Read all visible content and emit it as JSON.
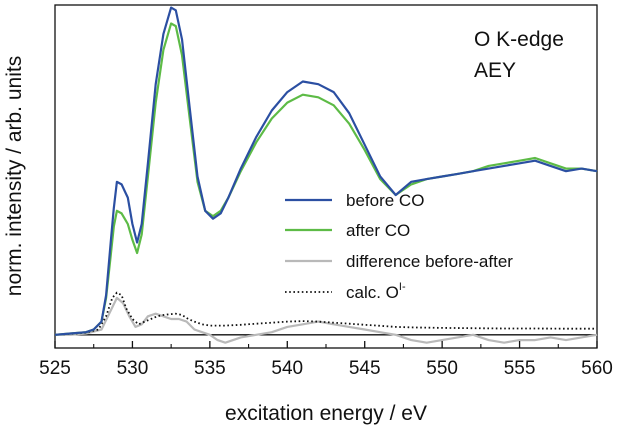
{
  "chart_data": {
    "type": "line",
    "title": "",
    "xlabel": "excitation energy / eV",
    "ylabel": "norm. intensity / arb. units",
    "xlim": [
      525,
      560
    ],
    "ylim": [
      -0.05,
      1.25
    ],
    "xticks": [
      525,
      530,
      535,
      540,
      545,
      550,
      555,
      560
    ],
    "annotation_lines": [
      "O K-edge",
      "AEY"
    ],
    "legend_position": "center-right",
    "baseline_y": 0.0,
    "series": [
      {
        "name": "before CO",
        "color": "#2b4fa2",
        "style": "solid",
        "x": [
          525,
          526,
          527,
          527.5,
          528,
          528.3,
          528.6,
          528.8,
          529,
          529.3,
          529.7,
          530,
          530.3,
          530.6,
          531,
          531.5,
          532,
          532.5,
          532.8,
          533.2,
          533.7,
          534.2,
          534.7,
          535.2,
          535.7,
          536.2,
          537,
          538,
          539,
          540,
          541,
          542,
          543,
          544,
          545,
          546,
          547,
          548,
          549,
          550,
          551,
          552,
          553,
          554,
          555,
          556,
          557,
          558,
          559,
          560
        ],
        "y": [
          0.0,
          0.005,
          0.01,
          0.02,
          0.05,
          0.15,
          0.35,
          0.48,
          0.58,
          0.57,
          0.52,
          0.42,
          0.35,
          0.42,
          0.65,
          0.95,
          1.14,
          1.24,
          1.23,
          1.12,
          0.86,
          0.6,
          0.47,
          0.44,
          0.46,
          0.52,
          0.63,
          0.75,
          0.85,
          0.92,
          0.96,
          0.95,
          0.92,
          0.84,
          0.72,
          0.6,
          0.53,
          0.58,
          0.59,
          0.6,
          0.61,
          0.62,
          0.63,
          0.64,
          0.65,
          0.66,
          0.64,
          0.62,
          0.63,
          0.62
        ]
      },
      {
        "name": "after CO",
        "color": "#5dbb46",
        "style": "solid",
        "x": [
          525,
          526,
          527,
          527.5,
          528,
          528.3,
          528.6,
          528.8,
          529,
          529.3,
          529.7,
          530,
          530.3,
          530.6,
          531,
          531.5,
          532,
          532.5,
          532.8,
          533.2,
          533.7,
          534.2,
          534.7,
          535.2,
          535.7,
          536.2,
          537,
          538,
          539,
          540,
          541,
          542,
          543,
          544,
          545,
          546,
          547,
          548,
          549,
          550,
          551,
          552,
          553,
          554,
          555,
          556,
          557,
          558,
          559,
          560
        ],
        "y": [
          0.0,
          0.005,
          0.01,
          0.02,
          0.05,
          0.14,
          0.3,
          0.41,
          0.47,
          0.46,
          0.42,
          0.36,
          0.31,
          0.38,
          0.6,
          0.88,
          1.08,
          1.18,
          1.17,
          1.06,
          0.82,
          0.58,
          0.47,
          0.45,
          0.47,
          0.52,
          0.62,
          0.73,
          0.82,
          0.88,
          0.91,
          0.9,
          0.87,
          0.8,
          0.7,
          0.59,
          0.53,
          0.57,
          0.59,
          0.6,
          0.61,
          0.62,
          0.64,
          0.65,
          0.66,
          0.67,
          0.65,
          0.63,
          0.63,
          0.62
        ]
      },
      {
        "name": "difference before-after",
        "color": "#b9b9b9",
        "style": "solid",
        "x": [
          525,
          526,
          527,
          528,
          528.5,
          529,
          529.4,
          529.8,
          530.2,
          530.6,
          531,
          531.5,
          532,
          532.5,
          533,
          533.5,
          534,
          534.5,
          535,
          535.5,
          536,
          537,
          538,
          539,
          540,
          541,
          542,
          543,
          544,
          545,
          546,
          547,
          548,
          549,
          550,
          551,
          552,
          553,
          554,
          555,
          556,
          557,
          558,
          559,
          560
        ],
        "y": [
          0.0,
          0.0,
          0.005,
          0.02,
          0.08,
          0.14,
          0.12,
          0.07,
          0.03,
          0.04,
          0.07,
          0.08,
          0.07,
          0.06,
          0.06,
          0.05,
          0.02,
          0.01,
          0.0,
          -0.02,
          -0.03,
          -0.01,
          0.0,
          0.01,
          0.03,
          0.04,
          0.05,
          0.04,
          0.03,
          0.02,
          0.01,
          0.0,
          -0.02,
          -0.03,
          -0.02,
          -0.01,
          0.0,
          -0.02,
          -0.03,
          -0.02,
          -0.02,
          -0.01,
          -0.02,
          -0.01,
          0.0
        ]
      },
      {
        "name": "calc. O",
        "name_superscript": "I-",
        "color": "#111111",
        "style": "dotted",
        "x": [
          525,
          526,
          527,
          527.8,
          528.3,
          528.7,
          529,
          529.3,
          529.6,
          530,
          530.4,
          530.8,
          531.2,
          531.6,
          532,
          532.4,
          532.8,
          533.2,
          533.6,
          534,
          534.5,
          535,
          536,
          537,
          538,
          539,
          540,
          541,
          542,
          543,
          544,
          545,
          546,
          547,
          548,
          550,
          552,
          554,
          556,
          558,
          560
        ],
        "y": [
          0.0,
          0.003,
          0.008,
          0.02,
          0.07,
          0.14,
          0.16,
          0.15,
          0.1,
          0.06,
          0.04,
          0.05,
          0.06,
          0.07,
          0.075,
          0.078,
          0.08,
          0.075,
          0.06,
          0.05,
          0.04,
          0.035,
          0.035,
          0.038,
          0.042,
          0.046,
          0.05,
          0.052,
          0.05,
          0.046,
          0.042,
          0.038,
          0.034,
          0.03,
          0.028,
          0.026,
          0.025,
          0.024,
          0.024,
          0.023,
          0.023
        ]
      }
    ]
  }
}
